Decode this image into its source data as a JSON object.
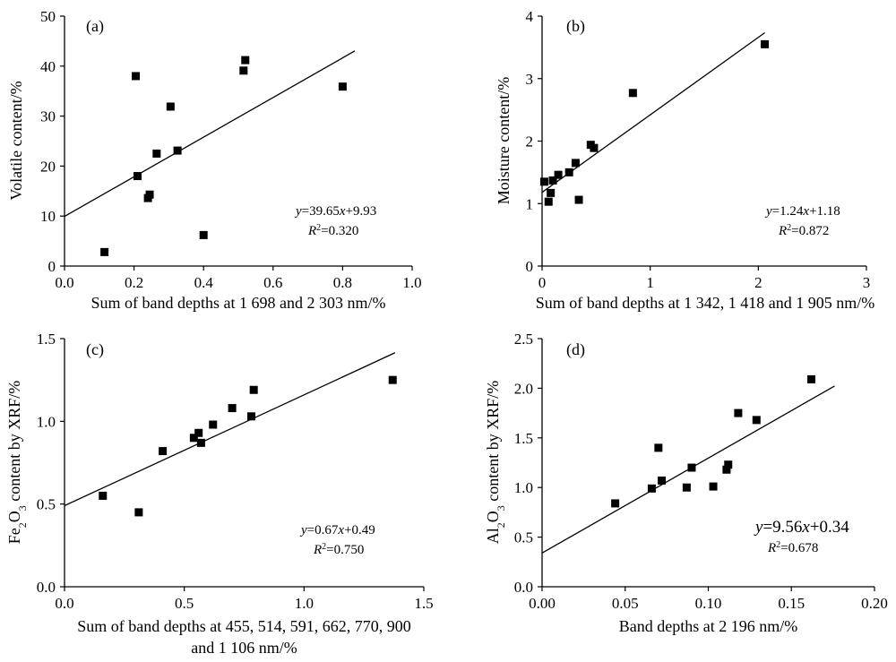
{
  "chart_data": [
    {
      "type": "scatter",
      "panel_label": "(a)",
      "xlabel": "Sum of band depths at 1 698  and 2 303 nm/%",
      "ylabel": "Volatile content/%",
      "xlim": [
        0.0,
        1.0
      ],
      "ylim": [
        0,
        50
      ],
      "x_ticks": [
        "0.0",
        "0.2",
        "0.4",
        "0.6",
        "0.8",
        "1.0"
      ],
      "y_ticks": [
        "0",
        "10",
        "20",
        "30",
        "40",
        "50"
      ],
      "points": [
        {
          "x": 0.115,
          "y": 2.8
        },
        {
          "x": 0.205,
          "y": 38.0
        },
        {
          "x": 0.21,
          "y": 18.0
        },
        {
          "x": 0.24,
          "y": 13.6
        },
        {
          "x": 0.245,
          "y": 14.3
        },
        {
          "x": 0.265,
          "y": 22.5
        },
        {
          "x": 0.305,
          "y": 31.9
        },
        {
          "x": 0.325,
          "y": 23.1
        },
        {
          "x": 0.4,
          "y": 6.2
        },
        {
          "x": 0.515,
          "y": 39.1
        },
        {
          "x": 0.52,
          "y": 41.2
        },
        {
          "x": 0.8,
          "y": 35.9
        }
      ],
      "fit": {
        "slope": 39.65,
        "intercept": 9.93,
        "x_range": [
          0.0,
          0.835
        ]
      },
      "equation": {
        "y_lead": "y",
        "eq_mid": "=39.65",
        "x_var": "x",
        "eq_tail": "+9.93",
        "r_lead": "R",
        "r_sup": "2",
        "r_tail": "=0.320"
      }
    },
    {
      "type": "scatter",
      "panel_label": "(b)",
      "xlabel": "Sum of band depths at 1 342, 1 418 and 1 905 nm/%",
      "ylabel": "Moisture content/%",
      "xlim": [
        0,
        3
      ],
      "ylim": [
        0,
        4
      ],
      "x_ticks": [
        "0",
        "1",
        "2",
        "3"
      ],
      "y_ticks": [
        "0",
        "1",
        "2",
        "3",
        "4"
      ],
      "points": [
        {
          "x": 0.02,
          "y": 1.35
        },
        {
          "x": 0.06,
          "y": 1.03
        },
        {
          "x": 0.08,
          "y": 1.17
        },
        {
          "x": 0.1,
          "y": 1.37
        },
        {
          "x": 0.15,
          "y": 1.46
        },
        {
          "x": 0.25,
          "y": 1.5
        },
        {
          "x": 0.31,
          "y": 1.65
        },
        {
          "x": 0.34,
          "y": 1.06
        },
        {
          "x": 0.45,
          "y": 1.94
        },
        {
          "x": 0.48,
          "y": 1.89
        },
        {
          "x": 0.84,
          "y": 2.77
        },
        {
          "x": 2.06,
          "y": 3.55
        }
      ],
      "fit": {
        "slope": 1.24,
        "intercept": 1.18,
        "x_range": [
          0.0,
          2.06
        ]
      },
      "equation": {
        "y_lead": "y",
        "eq_mid": "=1.24",
        "x_var": "x",
        "eq_tail": "+1.18",
        "r_lead": "R",
        "r_sup": "2",
        "r_tail": "=0.872"
      }
    },
    {
      "type": "scatter",
      "panel_label": "(c)",
      "xlabel": "Sum of band depths at 455, 514, 591,  662, 770, 900",
      "xlabel_line2": "and 1 106 nm/%",
      "ylabel_pre": "Fe",
      "ylabel_sub": "2",
      "ylabel_mid": "O",
      "ylabel_sub2": "3",
      "ylabel_post": " content by XRF/%",
      "xlim": [
        0.0,
        1.5
      ],
      "ylim": [
        0.0,
        1.5
      ],
      "x_ticks": [
        "0.0",
        "0.5",
        "1.0",
        "1.5"
      ],
      "y_ticks": [
        "0.0",
        "0.5",
        "1.0",
        "1.5"
      ],
      "points": [
        {
          "x": 0.16,
          "y": 0.55
        },
        {
          "x": 0.31,
          "y": 0.45
        },
        {
          "x": 0.41,
          "y": 0.82
        },
        {
          "x": 0.54,
          "y": 0.9
        },
        {
          "x": 0.56,
          "y": 0.93
        },
        {
          "x": 0.57,
          "y": 0.87
        },
        {
          "x": 0.62,
          "y": 0.98
        },
        {
          "x": 0.7,
          "y": 1.08
        },
        {
          "x": 0.78,
          "y": 1.03
        },
        {
          "x": 0.79,
          "y": 1.19
        },
        {
          "x": 1.37,
          "y": 1.25
        }
      ],
      "fit": {
        "slope": 0.67,
        "intercept": 0.49,
        "x_range": [
          0.0,
          1.38
        ]
      },
      "equation": {
        "y_lead": "y",
        "eq_mid": "=0.67",
        "x_var": "x",
        "eq_tail": "+0.49",
        "r_lead": "R",
        "r_sup": "2",
        "r_tail": "=0.750"
      }
    },
    {
      "type": "scatter",
      "panel_label": "(d)",
      "xlabel": "Band depths at 2 196 nm/%",
      "ylabel_pre": "Al",
      "ylabel_sub": "2",
      "ylabel_mid": "O",
      "ylabel_sub2": "3",
      "ylabel_post": " content by XRF/%",
      "xlim": [
        0.0,
        0.2
      ],
      "ylim": [
        0.0,
        2.5
      ],
      "x_ticks": [
        "0.00",
        "0.05",
        "0.10",
        "0.15",
        "0.20"
      ],
      "y_ticks": [
        "0.0",
        "0.5",
        "1.0",
        "1.5",
        "2.0",
        "2.5"
      ],
      "points": [
        {
          "x": 0.044,
          "y": 0.84
        },
        {
          "x": 0.066,
          "y": 0.99
        },
        {
          "x": 0.07,
          "y": 1.4
        },
        {
          "x": 0.072,
          "y": 1.07
        },
        {
          "x": 0.087,
          "y": 1.0
        },
        {
          "x": 0.09,
          "y": 1.2
        },
        {
          "x": 0.103,
          "y": 1.01
        },
        {
          "x": 0.111,
          "y": 1.18
        },
        {
          "x": 0.112,
          "y": 1.23
        },
        {
          "x": 0.118,
          "y": 1.75
        },
        {
          "x": 0.129,
          "y": 1.68
        },
        {
          "x": 0.162,
          "y": 2.09
        }
      ],
      "fit": {
        "slope": 9.56,
        "intercept": 0.34,
        "x_range": [
          0.0,
          0.176
        ]
      },
      "equation": {
        "y_lead": "y",
        "eq_mid": "=9.56",
        "x_var": "x",
        "eq_tail": "+0.34",
        "r_lead": "R",
        "r_sup": "2",
        "r_tail": "=0.678",
        "large": true
      }
    }
  ]
}
